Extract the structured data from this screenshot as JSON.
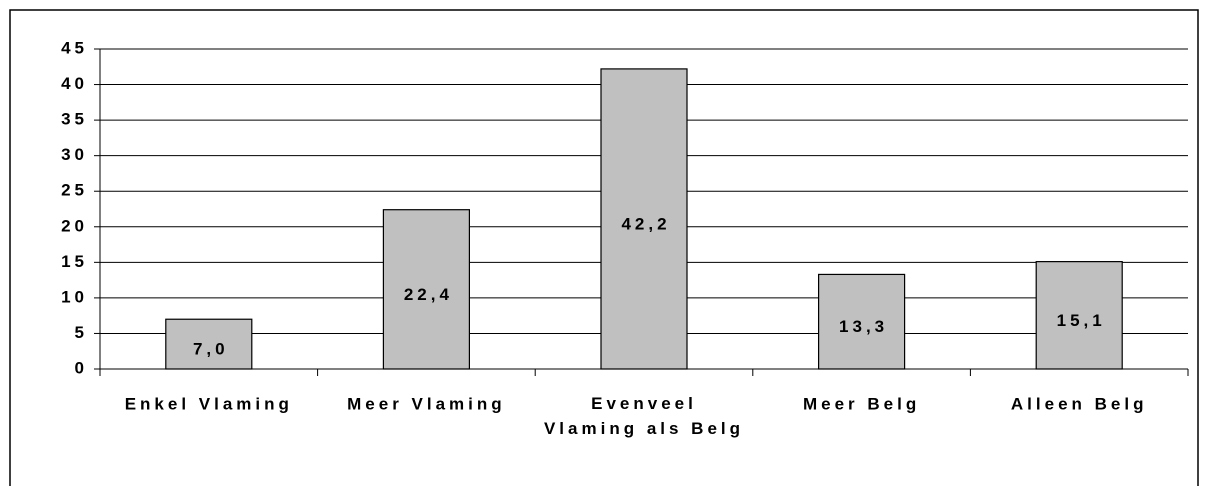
{
  "chart_data": {
    "type": "bar",
    "categories": [
      "Enkel Vlaming",
      "Meer Vlaming",
      "Evenveel Vlaming als Belg",
      "Meer Belg",
      "Alleen Belg"
    ],
    "values": [
      7.0,
      22.4,
      42.2,
      13.3,
      15.1
    ],
    "value_labels": [
      "7,0",
      "22,4",
      "42,2",
      "13,3",
      "15,1"
    ],
    "color": "#c0c0c0",
    "ylim": [
      0,
      45
    ],
    "yticks": [
      0,
      5,
      10,
      15,
      20,
      25,
      30,
      35,
      40,
      45
    ],
    "grid": true
  }
}
